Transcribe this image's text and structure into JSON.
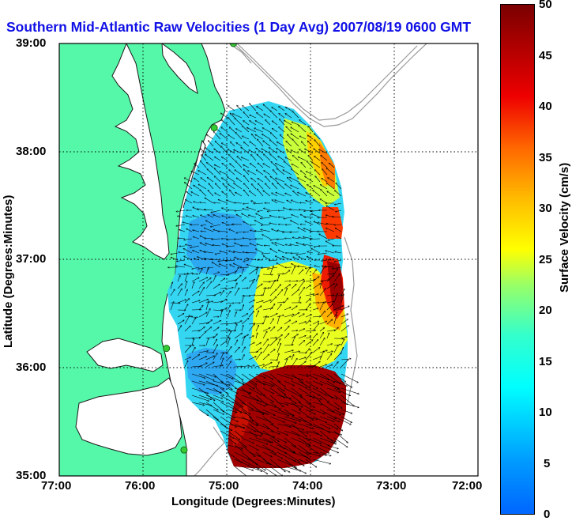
{
  "title": "Southern Mid-Atlantic Raw Velocities (1 Day Avg) 2007/08/19 0600 GMT",
  "x_axis": {
    "label": "Longitude (Degrees:Minutes)",
    "ticks": [
      "77:00",
      "76:00",
      "75:00",
      "74:00",
      "73:00",
      "72:00"
    ]
  },
  "y_axis": {
    "label": "Latitude (Degrees:Minutes)",
    "ticks": [
      "39:00",
      "38:00",
      "37:00",
      "36:00",
      "35:00"
    ]
  },
  "colorbar": {
    "label": "Surface Velocity (cm/s)",
    "ticks": [
      "50",
      "45",
      "40",
      "35",
      "30",
      "25",
      "20",
      "15",
      "10",
      "5",
      "0"
    ],
    "range": [
      0,
      50
    ],
    "colormap": "jet"
  },
  "map_extent": {
    "lon": [
      -77,
      -72
    ],
    "lat": [
      35,
      39
    ]
  },
  "colors": {
    "land": "#55f7a8",
    "water": "#ffffff",
    "coast_line": "#1a1a1a",
    "bathymetry_contour": "#999999",
    "station": "#33cc33",
    "vector": "#000000",
    "title": "#1010e6"
  },
  "grid": true,
  "stations": [
    {
      "lon": -74.92,
      "lat": 39.0
    },
    {
      "lon": -75.15,
      "lat": 38.22
    },
    {
      "lon": -75.72,
      "lat": 36.18
    },
    {
      "lon": -75.51,
      "lat": 35.24
    }
  ]
}
